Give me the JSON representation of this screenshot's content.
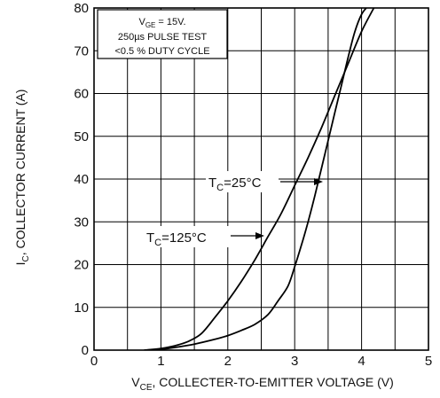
{
  "chart_data": {
    "type": "line",
    "xlabel": "V_CE, COLLECTER-TO-EMITTER VOLTAGE (V)",
    "xlabel_main": "V",
    "xlabel_sub": "CE",
    "xlabel_rest": ", COLLECTER-TO-EMITTER VOLTAGE (V)",
    "ylabel": "I_C, COLLECTOR CURRENT (A)",
    "ylabel_main": "I",
    "ylabel_sub": "C",
    "ylabel_rest": ", COLLECTOR CURRENT (A)",
    "xlim": [
      0,
      5
    ],
    "ylim": [
      0,
      80
    ],
    "x_ticks": [
      "0",
      "1",
      "2",
      "3",
      "4",
      "5"
    ],
    "y_ticks": [
      "0",
      "10",
      "20",
      "30",
      "40",
      "50",
      "60",
      "70",
      "80"
    ],
    "grid": true,
    "legend": {
      "line1_main": "V",
      "line1_sub": "GE",
      "line1_rest": " = 15V.",
      "line2": "250µs PULSE TEST",
      "line3": "<0.5 % DUTY CYCLE"
    },
    "series": [
      {
        "name": "T_C=25°C",
        "label_main": "T",
        "label_sub": "C",
        "label_rest": "=25°C",
        "label_at": [
          3.45,
          40
        ],
        "x": [
          0.75,
          1.0,
          1.2,
          1.4,
          1.6,
          1.8,
          2.0,
          2.2,
          2.4,
          2.6,
          2.8,
          3.0,
          3.2,
          3.4,
          3.6,
          3.8,
          4.0,
          4.2
        ],
        "y": [
          0,
          0.4,
          1.0,
          2.0,
          3.8,
          7.5,
          11.5,
          16.0,
          21.0,
          26.5,
          32.0,
          38.5,
          45.0,
          52.0,
          59.5,
          67.0,
          74.5,
          80.5
        ]
      },
      {
        "name": "T_C=125°C",
        "label_main": "T",
        "label_sub": "C",
        "label_rest": "=125°C",
        "label_at": [
          2.6,
          31
        ],
        "x": [
          0.75,
          1.0,
          1.2,
          1.5,
          1.8,
          2.0,
          2.2,
          2.4,
          2.6,
          2.75,
          2.9,
          3.0,
          3.1,
          3.2,
          3.3,
          3.4,
          3.5,
          3.6,
          3.7,
          3.8,
          3.9,
          4.0,
          4.1,
          4.15
        ],
        "y": [
          0,
          0.2,
          0.6,
          1.4,
          2.5,
          3.4,
          4.6,
          6.0,
          8.3,
          11.5,
          15.0,
          19.5,
          24.5,
          30.0,
          36.0,
          42.5,
          49.0,
          55.5,
          62.0,
          68.5,
          74.5,
          78.5,
          80.5,
          81.0
        ]
      }
    ]
  }
}
